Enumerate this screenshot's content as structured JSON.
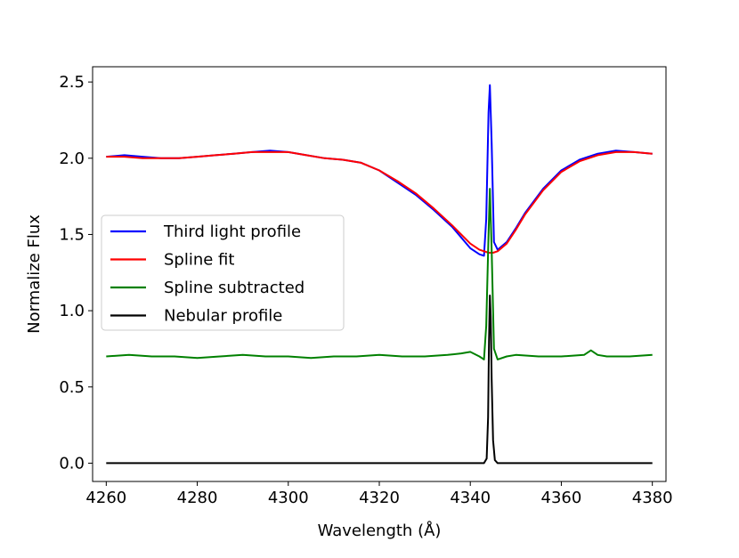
{
  "chart_data": {
    "type": "line",
    "xlabel": "Wavelength (Å)",
    "ylabel": "Normalize Flux",
    "xlim": [
      4257,
      4383
    ],
    "ylim": [
      -0.12,
      2.6
    ],
    "xticks": [
      4260,
      4280,
      4300,
      4320,
      4340,
      4360,
      4380
    ],
    "yticks": [
      0.0,
      0.5,
      1.0,
      1.5,
      2.0,
      2.5
    ],
    "xtick_labels": [
      "4260",
      "4280",
      "4300",
      "4320",
      "4340",
      "4360",
      "4380"
    ],
    "ytick_labels": [
      "0.0",
      "0.5",
      "1.0",
      "1.5",
      "2.0",
      "2.5"
    ],
    "grid": false,
    "legend_position": "center-left",
    "series": [
      {
        "name": "Third light profile",
        "color": "#0000ff",
        "x": [
          4260,
          4264,
          4268,
          4272,
          4276,
          4280,
          4284,
          4288,
          4292,
          4296,
          4300,
          4304,
          4308,
          4312,
          4316,
          4320,
          4324,
          4328,
          4332,
          4336,
          4338,
          4340,
          4342,
          4343,
          4343.5,
          4344,
          4344.3,
          4344.7,
          4345.2,
          4346,
          4348,
          4350,
          4352,
          4356,
          4360,
          4364,
          4368,
          4372,
          4376,
          4380
        ],
        "y": [
          2.01,
          2.02,
          2.01,
          2.0,
          2.0,
          2.01,
          2.02,
          2.03,
          2.04,
          2.05,
          2.04,
          2.02,
          2.0,
          1.99,
          1.97,
          1.92,
          1.84,
          1.76,
          1.66,
          1.55,
          1.48,
          1.41,
          1.37,
          1.36,
          1.6,
          2.3,
          2.48,
          2.1,
          1.45,
          1.4,
          1.45,
          1.54,
          1.64,
          1.8,
          1.92,
          1.99,
          2.03,
          2.05,
          2.04,
          2.03
        ]
      },
      {
        "name": "Spline fit",
        "color": "#ff0000",
        "x": [
          4260,
          4264,
          4268,
          4272,
          4276,
          4280,
          4284,
          4288,
          4292,
          4296,
          4300,
          4304,
          4308,
          4312,
          4316,
          4320,
          4324,
          4328,
          4332,
          4336,
          4338,
          4340,
          4342,
          4344,
          4345,
          4346,
          4348,
          4350,
          4352,
          4356,
          4360,
          4364,
          4368,
          4372,
          4376,
          4380
        ],
        "y": [
          2.01,
          2.01,
          2.0,
          2.0,
          2.0,
          2.01,
          2.02,
          2.03,
          2.04,
          2.04,
          2.04,
          2.02,
          2.0,
          1.99,
          1.97,
          1.92,
          1.85,
          1.77,
          1.67,
          1.56,
          1.5,
          1.44,
          1.4,
          1.38,
          1.38,
          1.39,
          1.44,
          1.53,
          1.63,
          1.79,
          1.91,
          1.98,
          2.02,
          2.04,
          2.04,
          2.03
        ]
      },
      {
        "name": "Spline subtracted",
        "color": "#008000",
        "x": [
          4260,
          4265,
          4270,
          4275,
          4280,
          4285,
          4290,
          4295,
          4300,
          4305,
          4310,
          4315,
          4320,
          4325,
          4330,
          4335,
          4338,
          4340,
          4342,
          4343,
          4343.5,
          4344,
          4344.3,
          4344.7,
          4345.2,
          4346,
          4348,
          4350,
          4355,
          4360,
          4365,
          4366.5,
          4368,
          4370,
          4375,
          4380
        ],
        "y": [
          0.7,
          0.71,
          0.7,
          0.7,
          0.69,
          0.7,
          0.71,
          0.7,
          0.7,
          0.69,
          0.7,
          0.7,
          0.71,
          0.7,
          0.7,
          0.71,
          0.72,
          0.73,
          0.7,
          0.68,
          0.9,
          1.5,
          1.8,
          1.4,
          0.75,
          0.68,
          0.7,
          0.71,
          0.7,
          0.7,
          0.71,
          0.74,
          0.71,
          0.7,
          0.7,
          0.71
        ]
      },
      {
        "name": "Nebular profile",
        "color": "#000000",
        "x": [
          4260,
          4340,
          4343,
          4343.6,
          4343.9,
          4344.1,
          4344.3,
          4344.5,
          4344.7,
          4345.0,
          4345.4,
          4346,
          4380
        ],
        "y": [
          0.0,
          0.0,
          0.0,
          0.03,
          0.3,
          0.8,
          1.1,
          0.95,
          0.55,
          0.15,
          0.02,
          0.0,
          0.0
        ]
      }
    ]
  }
}
